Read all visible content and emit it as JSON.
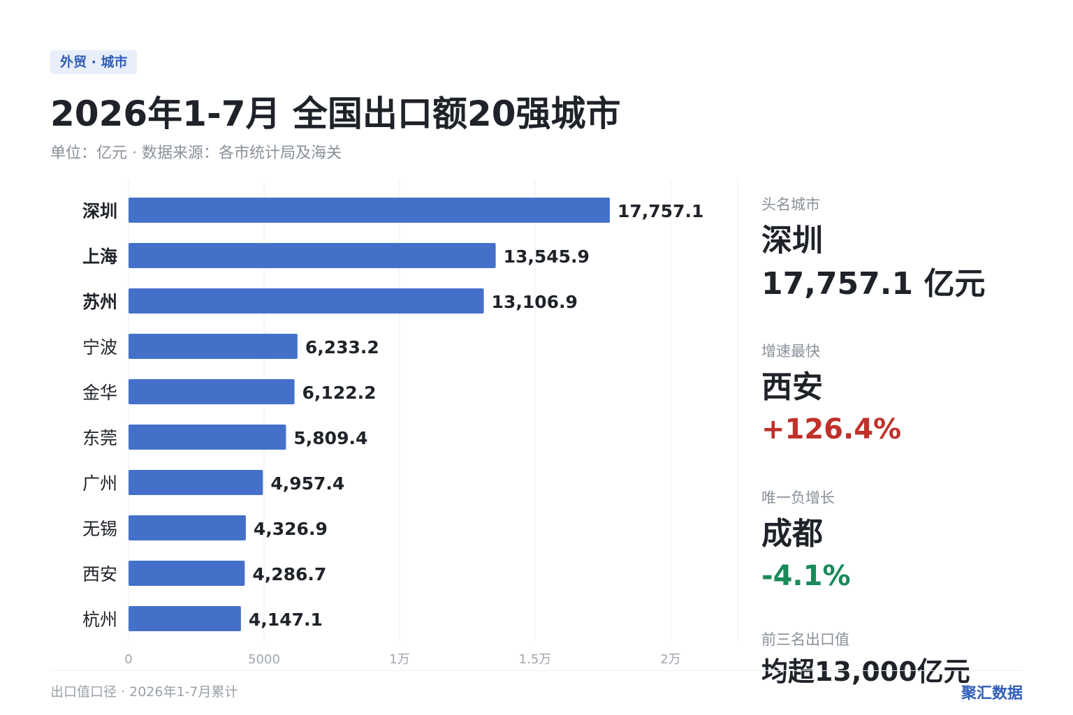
{
  "header": {
    "tag": "外贸 · 城市",
    "title": "2026年1-7月 全国出口额20强城市",
    "subtitle": "单位：亿元 · 数据来源：各市统计局及海关"
  },
  "chart_data": {
    "type": "bar",
    "orientation": "horizontal",
    "categories": [
      "深圳",
      "上海",
      "苏州",
      "宁波",
      "金华",
      "东莞",
      "广州",
      "无锡",
      "西安",
      "杭州"
    ],
    "values": [
      17757.1,
      13545.9,
      13106.9,
      6233.2,
      6122.2,
      5809.4,
      4957.4,
      4326.9,
      4286.7,
      4147.1
    ],
    "value_labels": [
      "17,757.1",
      "13,545.9",
      "13,106.9",
      "6,233.2",
      "6,122.2",
      "5,809.4",
      "4,957.4",
      "4,326.9",
      "4,286.7",
      "4,147.1"
    ],
    "bold_categories": 3,
    "xlim": [
      0,
      20000
    ],
    "xticks": [
      0,
      5000,
      10000,
      15000,
      20000
    ],
    "xtick_labels": [
      "0",
      "5000",
      "1万",
      "1.5万",
      "2万"
    ],
    "grid": true,
    "bar_color": "#4470c9"
  },
  "sidebar": {
    "top_city": {
      "label": "头名城市",
      "name": "深圳",
      "value": "17,757.1 亿元"
    },
    "fastest": {
      "label": "增速最快",
      "name": "西安",
      "value": "+126.4%",
      "color": "#c0312b"
    },
    "only_negative": {
      "label": "唯一负增长",
      "name": "成都",
      "value": "-4.1%",
      "color": "#1a8a5a"
    },
    "top3": {
      "label": "前三名出口值",
      "value": "均超13,000亿元"
    }
  },
  "footer": {
    "note": "出口值口径 · 2026年1-7月累计",
    "brand": "聚汇数据"
  }
}
